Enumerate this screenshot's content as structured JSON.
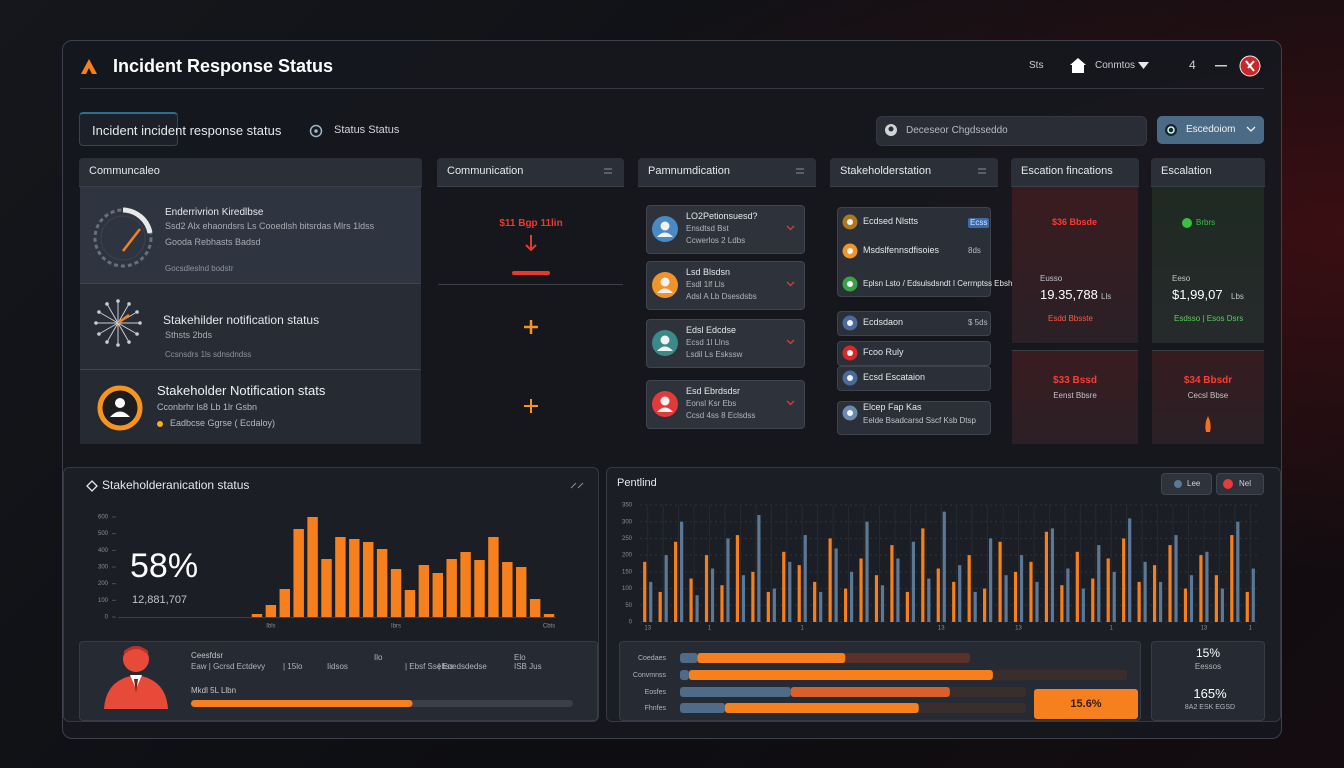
{
  "header": {
    "title": "Incident Response Status",
    "links": [
      "Sts",
      "Conmtos"
    ],
    "menu": "4"
  },
  "tabs": [
    "Incident incident response status",
    "Status Status"
  ],
  "search": "Deceseor Chgdsseddo",
  "action_button": "Escedoiom",
  "communications": {
    "title": "Communcaleo",
    "items": [
      {
        "title": "Enderrivrion Kiredlbse",
        "lines": [
          "Ssd2 Alx ehaondsrs Ls Cooedlsh bitsrdas Mlrs 1ldss",
          "Gooda Rebhasts Badsd",
          "Gocsdleslnd bodstr"
        ]
      },
      {
        "title": "Stakehilder notification status",
        "lines": [
          "Sthsts 2bds",
          "Ccsnsdrs 1ls sdnsdndss"
        ]
      },
      {
        "title": "Stakeholder Notification stats",
        "lines": [
          "Cconbrhr ls8 Lb 1lr Gsbn",
          "Eadbcse Ggrse ( Ecdaloy)"
        ]
      }
    ]
  },
  "communication": {
    "title": "Communication",
    "amount": "$11 Bgp 11lin"
  },
  "notifications": {
    "title": "Pamnumdication",
    "items": [
      {
        "title": "LO2Petionsuesd?",
        "lines": [
          "Ensdtsd Bst",
          "Ccwerlos 2 Ldbs"
        ]
      },
      {
        "title": "Lsd Blsdsn",
        "lines": [
          "Esdl 1lf Lls",
          "Adsl A Lb Dsesdsbs"
        ]
      },
      {
        "title": "Edsl Edcdse",
        "lines": [
          "Ecsd 1l Llns",
          "Lsdil Ls Eskssw"
        ]
      },
      {
        "title": "Esd Ebrdsdsr",
        "lines": [
          "Eonsl Ksr Ebs",
          "Ccsd 4ss 8 Eclsdss"
        ]
      }
    ]
  },
  "stakeholders": {
    "title": "Stakeholderstation",
    "items": [
      {
        "title": "Ecdsed Nlstts",
        "tag": "Ecss"
      },
      {
        "title": "Msdslfennsdfisoies",
        "tag": "8ds"
      },
      {
        "title": "Eplsn Lsto / Edsulsdsndt I Cerrnptss Ebsh"
      },
      {
        "title": "Ecdsdaon",
        "tag": "$ 5ds"
      },
      {
        "title": "Fcoo Ruly"
      },
      {
        "title": "Ecsd Escataion"
      },
      {
        "title": "Elcep Fap Kas",
        "lines": [
          "Eelde Bsadcarsd Sscf Ksb Dtsp"
        ]
      }
    ]
  },
  "escalation_fin": {
    "title": "Escation fincations",
    "cards": [
      {
        "tag": "$36 Bbsde",
        "label": "Eusso",
        "value": "19.35,788",
        "unit": "Lls",
        "sub": "Esdd Bbsste"
      },
      {
        "tag": "$33 Bssd",
        "sub": "Eenst Bbsre"
      }
    ]
  },
  "escalation": {
    "title": "Escalation",
    "cards": [
      {
        "tag": "Brbrs",
        "label": "Eeso",
        "value": "$1,99,07",
        "unit": "Lbs",
        "sub": "Esdsso | Esos Dsrs"
      },
      {
        "tag": "$34 Bbsdr",
        "sub": "Cecsl Bbse"
      }
    ]
  },
  "chart_data": [
    {
      "type": "bar",
      "title": "Stakeholderanication status",
      "annotations": [
        "58%",
        "12,881,707"
      ],
      "categories": [
        null,
        "Ibls",
        null,
        null,
        null,
        null,
        null,
        null,
        null,
        null,
        "Ibrs",
        null,
        null,
        null,
        null,
        null,
        null,
        null,
        null,
        null,
        null,
        "Cbts"
      ],
      "values": [
        18,
        72,
        168,
        528,
        600,
        348,
        480,
        468,
        450,
        408,
        288,
        162,
        312,
        264,
        348,
        390,
        342,
        480,
        330,
        300,
        108,
        18
      ],
      "color": "#f7801e",
      "ylim": [
        0,
        600
      ],
      "yticks": [
        0,
        100,
        200,
        300,
        400,
        500,
        600
      ]
    },
    {
      "type": "grouped-bar",
      "title": "Pentlind",
      "categories": [
        "13",
        null,
        null,
        null,
        "1",
        null,
        null,
        null,
        null,
        null,
        "1",
        null,
        null,
        null,
        null,
        null,
        null,
        null,
        null,
        "13",
        null,
        null,
        null,
        null,
        "13",
        null,
        null,
        null,
        null,
        null,
        "1",
        null,
        null,
        null,
        null,
        null,
        "13",
        null,
        null,
        "1"
      ],
      "series": [
        {
          "name": "Nel",
          "color": "#f7801e",
          "values": [
            180,
            90,
            240,
            130,
            200,
            110,
            260,
            150,
            90,
            210,
            170,
            120,
            250,
            100,
            190,
            140,
            230,
            90,
            280,
            160,
            120,
            200,
            100,
            240,
            150,
            180,
            270,
            110,
            210,
            130,
            190,
            250,
            120,
            170,
            230,
            100,
            200,
            140,
            260,
            90
          ]
        },
        {
          "name": "Lee",
          "color": "#5b7896",
          "values": [
            120,
            200,
            300,
            80,
            160,
            250,
            140,
            320,
            100,
            180,
            260,
            90,
            220,
            150,
            300,
            110,
            190,
            240,
            130,
            330,
            170,
            90,
            250,
            140,
            200,
            120,
            280,
            160,
            100,
            230,
            150,
            310,
            180,
            120,
            260,
            140,
            210,
            100,
            300,
            160
          ]
        }
      ],
      "ylim": [
        0,
        350
      ],
      "yticks": [
        0,
        50,
        100,
        150,
        200,
        250,
        300,
        350
      ],
      "grid": true
    },
    {
      "type": "hbar",
      "categories": [
        "Coedaes",
        "Convmnss",
        "Eosfes",
        "Fhnfes"
      ],
      "series": [
        {
          "color": "#4f6b88",
          "values": [
            6,
            2,
            32,
            13
          ]
        },
        {
          "color": "#f7801e",
          "values": [
            51,
            68,
            46,
            56
          ]
        }
      ],
      "xlim": [
        0,
        100
      ]
    }
  ],
  "person_card": {
    "title": "Ceesfdsr",
    "cells": [
      "Eaw | Gcrsd Ectdevy",
      "| 15lo",
      "Iidsos",
      "Ilo",
      "| Ebsf Ssehss",
      "| Eoedsdedse",
      "Elo",
      "ISB Jus"
    ],
    "label": "Mkdl 5L Llbn",
    "progress": 58
  },
  "percent_button": "15.6%",
  "side_card": [
    "15%",
    "Eessos",
    "165%",
    "8A2 ESK EGSD"
  ]
}
